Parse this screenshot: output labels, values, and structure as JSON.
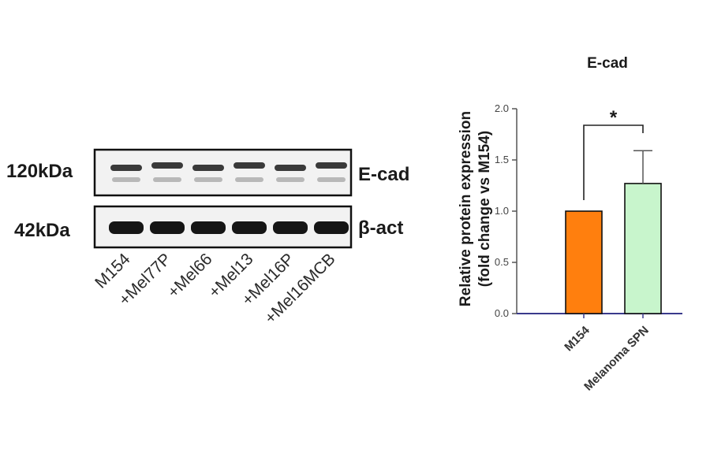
{
  "blot": {
    "rows": [
      {
        "size_label": "120kDa",
        "protein_label": "E-cad"
      },
      {
        "size_label": "42kDa",
        "protein_label": "β-act"
      }
    ],
    "lanes": [
      "M154",
      "+Mel77P",
      "+Mel66",
      "+Mel13",
      "+Mel16P",
      "+Mel16MCB"
    ]
  },
  "chart_data": {
    "type": "bar",
    "title": "E-cad",
    "ylabel_line1": "Relative protein expression",
    "ylabel_line2": "(fold change vs M154)",
    "xlabel": "",
    "categories": [
      "M154",
      "Melanoma SPN"
    ],
    "values": [
      1.0,
      1.27
    ],
    "errors": [
      0,
      0.32
    ],
    "colors": [
      "#ff7f0e",
      "#c8f5cc"
    ],
    "ylim": [
      0,
      2.0
    ],
    "yticks": [
      "0.0",
      "0.5",
      "1.0",
      "1.5",
      "2.0"
    ],
    "ytick_values": [
      0,
      0.5,
      1.0,
      1.5,
      2.0
    ],
    "significance": "*"
  }
}
